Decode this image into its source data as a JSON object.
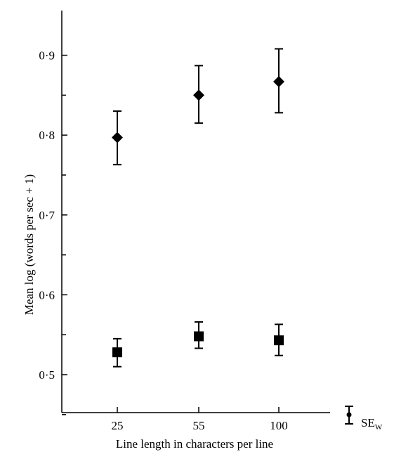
{
  "chart_data": {
    "type": "scatter",
    "categories": [
      "25",
      "55",
      "100"
    ],
    "xlabel": "Line length in characters per line",
    "ylabel": "Mean log (words per sec + 1)",
    "ylim": [
      0.45,
      0.95
    ],
    "yticks": [
      0.5,
      0.6,
      0.7,
      0.8,
      0.9
    ],
    "ytick_labels": [
      "0·5",
      "0·6",
      "0·7",
      "0·8",
      "0·9"
    ],
    "grid": false,
    "series": [
      {
        "marker": "diamond",
        "values": [
          0.797,
          0.85,
          0.867
        ],
        "err_low": [
          0.763,
          0.815,
          0.828
        ],
        "err_high": [
          0.83,
          0.887,
          0.908
        ]
      },
      {
        "marker": "square",
        "values": [
          0.528,
          0.548,
          0.543
        ],
        "err_low": [
          0.51,
          0.533,
          0.524
        ],
        "err_high": [
          0.545,
          0.566,
          0.563
        ]
      }
    ],
    "legend": {
      "label": "SE",
      "subscript": "W",
      "position": "bottom-right"
    }
  }
}
